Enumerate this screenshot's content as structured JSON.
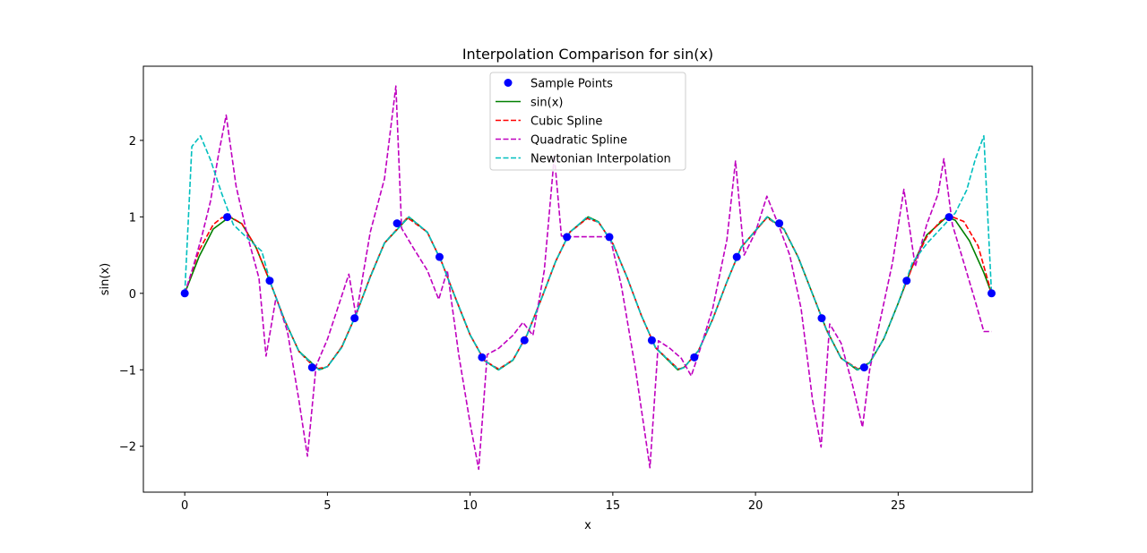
{
  "chart_data": {
    "type": "line",
    "title": "Interpolation Comparison for sin(x)",
    "xlabel": "x",
    "ylabel": "sin(x)",
    "xlim": [
      -1.45,
      29.7
    ],
    "ylim": [
      -2.6,
      2.97
    ],
    "xticks": [
      0,
      5,
      10,
      15,
      20,
      25
    ],
    "yticks": [
      -2,
      -1,
      0,
      1,
      2
    ],
    "grid": false,
    "legend_position": "top-center",
    "series": [
      {
        "name": "Sample Points",
        "kind": "scatter",
        "color": "#0000ff",
        "x": [
          0,
          1.488,
          2.976,
          4.464,
          5.952,
          7.44,
          8.928,
          10.416,
          11.904,
          13.392,
          14.88,
          16.368,
          17.856,
          19.344,
          20.832,
          22.32,
          23.808,
          25.296,
          26.784,
          28.272
        ],
        "y": [
          0,
          0.997,
          0.165,
          -0.969,
          -0.325,
          0.915,
          0.476,
          -0.837,
          -0.614,
          0.736,
          0.736,
          -0.614,
          -0.837,
          0.476,
          0.915,
          -0.325,
          -0.969,
          0.165,
          0.997,
          0
        ]
      },
      {
        "name": "sin(x)",
        "kind": "line",
        "color": "#008000",
        "dash": "solid",
        "x": [
          0,
          0.5,
          1.0,
          1.5708,
          2.0,
          2.5,
          3.0,
          3.5,
          4.0,
          4.7124,
          5.0,
          5.5,
          6.0,
          6.5,
          7.0,
          7.854,
          8.5,
          9.0,
          9.5,
          10.0,
          10.5,
          10.9956,
          11.5,
          12.0,
          12.5,
          13.0,
          13.5,
          14.1372,
          14.5,
          15.0,
          15.5,
          16.0,
          16.5,
          17.2788,
          17.5,
          18.0,
          18.5,
          19.0,
          19.5,
          20.4204,
          21.0,
          21.5,
          22.0,
          22.5,
          23.0,
          23.562,
          24.0,
          24.5,
          25.0,
          25.5,
          26.0,
          26.7035,
          27.0,
          27.5,
          28.0,
          28.272
        ],
        "y": [
          0,
          0.479,
          0.841,
          1.0,
          0.909,
          0.598,
          0.141,
          -0.351,
          -0.757,
          -1.0,
          -0.959,
          -0.706,
          -0.279,
          0.215,
          0.657,
          1.0,
          0.798,
          0.412,
          -0.075,
          -0.544,
          -0.88,
          -1.0,
          -0.875,
          -0.537,
          -0.066,
          0.42,
          0.804,
          1.0,
          0.935,
          0.65,
          0.207,
          -0.288,
          -0.712,
          -1.0,
          -0.967,
          -0.751,
          -0.338,
          0.15,
          0.605,
          1.0,
          0.837,
          0.467,
          -0.009,
          -0.486,
          -0.846,
          -1.0,
          -0.906,
          -0.592,
          -0.132,
          0.358,
          0.763,
          1.0,
          0.956,
          0.686,
          0.271,
          0.0
        ]
      },
      {
        "name": "Cubic Spline",
        "kind": "line",
        "color": "#ff0000",
        "dash": "dashed",
        "x": [
          0,
          0.5,
          1.0,
          1.3,
          1.6,
          2.0,
          2.5,
          3.0,
          3.5,
          4.0,
          4.6,
          5.0,
          5.5,
          6.0,
          6.5,
          7.0,
          7.8,
          8.5,
          9.0,
          9.5,
          10.0,
          10.5,
          11.0,
          11.5,
          12.0,
          12.5,
          13.0,
          13.5,
          14.1,
          14.5,
          15.0,
          15.5,
          16.0,
          16.5,
          17.3,
          17.5,
          18.0,
          18.5,
          19.0,
          19.5,
          20.4,
          21.0,
          21.5,
          22.0,
          22.5,
          23.0,
          23.6,
          24.0,
          24.5,
          25.0,
          25.5,
          26.0,
          26.5,
          26.9,
          27.3,
          27.8,
          28.272
        ],
        "y": [
          0,
          0.56,
          0.9,
          0.99,
          1.0,
          0.91,
          0.6,
          0.14,
          -0.35,
          -0.76,
          -0.99,
          -0.96,
          -0.7,
          -0.28,
          0.22,
          0.66,
          0.99,
          0.8,
          0.41,
          -0.07,
          -0.54,
          -0.88,
          -0.99,
          -0.87,
          -0.54,
          -0.07,
          0.42,
          0.8,
          0.98,
          0.93,
          0.65,
          0.21,
          -0.29,
          -0.71,
          -0.99,
          -0.97,
          -0.75,
          -0.34,
          0.15,
          0.6,
          0.99,
          0.84,
          0.47,
          -0.01,
          -0.49,
          -0.85,
          -0.99,
          -0.91,
          -0.59,
          -0.13,
          0.35,
          0.74,
          0.95,
          1.0,
          0.94,
          0.62,
          0.0
        ]
      },
      {
        "name": "Quadratic Spline",
        "kind": "line",
        "color": "#bf00bf",
        "dash": "dashed",
        "x": [
          0,
          0.3,
          0.6,
          0.9,
          1.2,
          1.45,
          1.8,
          2.2,
          2.6,
          2.85,
          3.2,
          3.6,
          4.0,
          4.3,
          4.6,
          5.0,
          5.4,
          5.75,
          6.0,
          6.5,
          7.0,
          7.4,
          7.6,
          8.0,
          8.5,
          8.9,
          9.2,
          9.6,
          10.0,
          10.3,
          10.6,
          11.0,
          11.5,
          11.85,
          12.2,
          12.6,
          12.95,
          13.2,
          13.5,
          14.0,
          14.5,
          14.9,
          15.3,
          15.8,
          16.3,
          16.6,
          17.0,
          17.4,
          17.75,
          18.0,
          18.5,
          19.0,
          19.3,
          19.6,
          20.0,
          20.4,
          20.8,
          21.2,
          21.6,
          22.0,
          22.3,
          22.6,
          23.0,
          23.4,
          23.75,
          24.0,
          24.4,
          24.8,
          25.2,
          25.6,
          26.0,
          26.4,
          26.6,
          26.9,
          27.3,
          27.7,
          28.0,
          28.272
        ],
        "y": [
          0,
          0.35,
          0.75,
          1.2,
          1.85,
          2.33,
          1.4,
          0.75,
          0.2,
          -0.82,
          -0.05,
          -0.5,
          -1.4,
          -2.13,
          -0.95,
          -0.6,
          -0.15,
          0.25,
          -0.3,
          0.8,
          1.5,
          2.71,
          0.85,
          0.6,
          0.3,
          -0.08,
          0.3,
          -0.8,
          -1.7,
          -2.3,
          -0.8,
          -0.72,
          -0.55,
          -0.38,
          -0.55,
          0.3,
          1.8,
          0.75,
          0.74,
          0.74,
          0.74,
          0.74,
          0.1,
          -1.0,
          -2.28,
          -0.62,
          -0.72,
          -0.85,
          -1.08,
          -0.8,
          -0.2,
          0.7,
          1.73,
          0.5,
          0.8,
          1.27,
          0.9,
          0.5,
          -0.2,
          -1.4,
          -2.01,
          -0.4,
          -0.65,
          -1.2,
          -1.75,
          -1.0,
          -0.3,
          0.4,
          1.36,
          0.35,
          0.9,
          1.3,
          1.76,
          0.9,
          0.4,
          -0.1,
          -0.5,
          -0.5
        ]
      },
      {
        "name": "Newtonian Interpolation",
        "kind": "line",
        "color": "#00bfbf",
        "dash": "dashed",
        "x": [
          0,
          0.25,
          0.55,
          0.9,
          1.3,
          1.7,
          2.2,
          2.7,
          3.0,
          3.5,
          4.0,
          4.7,
          5.0,
          5.5,
          6.0,
          6.5,
          7.0,
          7.85,
          8.5,
          9.0,
          9.5,
          10.0,
          10.5,
          11.0,
          11.5,
          12.0,
          12.5,
          13.0,
          13.5,
          14.1,
          14.5,
          15.0,
          15.5,
          16.0,
          16.5,
          17.3,
          17.5,
          18.0,
          18.5,
          19.0,
          19.5,
          20.4,
          21.0,
          21.5,
          22.0,
          22.5,
          23.0,
          23.6,
          24.0,
          24.5,
          25.0,
          25.5,
          26.0,
          26.5,
          27.0,
          27.4,
          27.7,
          28.0,
          28.272
        ],
        "y": [
          0,
          1.92,
          2.06,
          1.75,
          1.3,
          0.9,
          0.72,
          0.55,
          0.14,
          -0.35,
          -0.76,
          -1.0,
          -0.96,
          -0.71,
          -0.28,
          0.21,
          0.66,
          1.0,
          0.8,
          0.41,
          -0.07,
          -0.54,
          -0.88,
          -1.0,
          -0.87,
          -0.54,
          -0.07,
          0.42,
          0.8,
          1.0,
          0.93,
          0.65,
          0.21,
          -0.29,
          -0.71,
          -1.0,
          -0.97,
          -0.75,
          -0.34,
          0.15,
          0.6,
          1.0,
          0.84,
          0.47,
          -0.01,
          -0.49,
          -0.85,
          -1.0,
          -0.91,
          -0.59,
          -0.13,
          0.4,
          0.65,
          0.85,
          1.05,
          1.35,
          1.75,
          2.06,
          0.0
        ]
      }
    ]
  }
}
